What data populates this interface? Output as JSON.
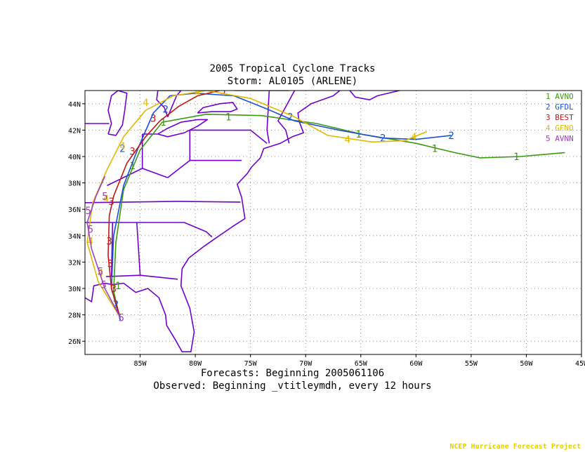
{
  "header": {
    "title_line1": "2005 Tropical Cyclone Tracks",
    "title_line2": "Storm: AL0105 (ARLENE)"
  },
  "footer": {
    "forecast_line": "Forecasts: Beginning 2005061106",
    "observed_line": "Observed: Beginning _vtitleymdh, every 12 hours",
    "credit": "NCEP Hurricane Forecast Project"
  },
  "map": {
    "lon_range": [
      -90,
      -45
    ],
    "lat_range": [
      25,
      45
    ],
    "lon_ticks": [
      "85W",
      "80W",
      "75W",
      "70W",
      "65W",
      "60W",
      "55W",
      "50W",
      "45W"
    ],
    "lat_ticks": [
      "26N",
      "28N",
      "30N",
      "32N",
      "34N",
      "36N",
      "38N",
      "40N",
      "42N",
      "44N"
    ],
    "grid": true,
    "boundary_color": "#7000d0"
  },
  "legend": {
    "placement": "top-right",
    "items": [
      {
        "num": "1",
        "name": "AVNO",
        "color": "#3a9a10"
      },
      {
        "num": "2",
        "name": "GFDL",
        "color": "#1850d8"
      },
      {
        "num": "3",
        "name": "BEST",
        "color": "#c01818"
      },
      {
        "num": "4",
        "name": "GFNO",
        "color": "#e0b800"
      },
      {
        "num": "5",
        "name": "AVNN",
        "color": "#a040c0"
      }
    ]
  },
  "tracks": [
    {
      "id": "1",
      "name": "AVNO",
      "color": "#3a9a10",
      "points": [
        [
          -86.8,
          27.6
        ],
        [
          -87.4,
          29.8
        ],
        [
          -87.2,
          33.5
        ],
        [
          -86.5,
          37.5
        ],
        [
          -85.0,
          40.5
        ],
        [
          -83.0,
          42.6
        ],
        [
          -79.0,
          43.2
        ],
        [
          -74.0,
          43.1
        ],
        [
          -69.0,
          42.5
        ],
        [
          -65.0,
          41.7
        ],
        [
          -60.0,
          41.0
        ],
        [
          -56.5,
          40.3
        ],
        [
          -54.2,
          39.9
        ],
        [
          -50.5,
          40.0
        ],
        [
          -46.5,
          40.3
        ]
      ],
      "labels": [
        [
          -87.0,
          30.2
        ],
        [
          -85.7,
          39.3
        ],
        [
          -82.9,
          42.6
        ],
        [
          -77.0,
          43.0
        ],
        [
          -65.2,
          41.7
        ],
        [
          -58.3,
          40.6
        ],
        [
          -50.9,
          40.0
        ]
      ]
    },
    {
      "id": "2",
      "name": "GFDL",
      "color": "#1850d8",
      "points": [
        [
          -86.8,
          27.6
        ],
        [
          -87.6,
          30.0
        ],
        [
          -87.4,
          34.0
        ],
        [
          -86.5,
          37.8
        ],
        [
          -85.2,
          40.6
        ],
        [
          -83.8,
          43.3
        ],
        [
          -82.3,
          44.6
        ],
        [
          -80.0,
          44.8
        ],
        [
          -76.5,
          44.6
        ],
        [
          -73.5,
          43.6
        ],
        [
          -71.0,
          42.7
        ],
        [
          -67.0,
          42.0
        ],
        [
          -63.0,
          41.4
        ],
        [
          -60.0,
          41.3
        ],
        [
          -56.8,
          41.6
        ]
      ],
      "labels": [
        [
          -87.2,
          28.8
        ],
        [
          -86.6,
          40.6
        ],
        [
          -82.7,
          43.6
        ],
        [
          -71.4,
          43.0
        ],
        [
          -63.0,
          41.4
        ],
        [
          -56.8,
          41.6
        ]
      ]
    },
    {
      "id": "3",
      "name": "BEST",
      "color": "#c01818",
      "points": [
        [
          -86.8,
          27.8
        ],
        [
          -87.6,
          30.0
        ],
        [
          -87.9,
          32.5
        ],
        [
          -87.8,
          35.5
        ],
        [
          -87.4,
          37.0
        ],
        [
          -86.2,
          39.5
        ],
        [
          -84.5,
          41.5
        ],
        [
          -83.2,
          42.7
        ],
        [
          -81.5,
          43.8
        ],
        [
          -79.8,
          44.6
        ],
        [
          -77.8,
          45.0
        ]
      ],
      "labels": [
        [
          -87.4,
          30.0
        ],
        [
          -87.7,
          31.9
        ],
        [
          -87.8,
          33.6
        ],
        [
          -87.6,
          36.6
        ],
        [
          -85.7,
          40.4
        ],
        [
          -83.8,
          42.9
        ],
        [
          -77.5,
          45.0
        ]
      ]
    },
    {
      "id": "4",
      "name": "GFNO",
      "color": "#e0b800",
      "points": [
        [
          -86.8,
          27.8
        ],
        [
          -88.8,
          30.5
        ],
        [
          -89.8,
          33.5
        ],
        [
          -89.3,
          36.5
        ],
        [
          -88.0,
          39.0
        ],
        [
          -86.5,
          41.5
        ],
        [
          -84.5,
          43.5
        ],
        [
          -82.0,
          44.6
        ],
        [
          -79.0,
          45.0
        ],
        [
          -75.0,
          44.4
        ],
        [
          -71.0,
          43.0
        ],
        [
          -68.0,
          41.6
        ],
        [
          -64.0,
          41.1
        ],
        [
          -61.0,
          41.2
        ],
        [
          -59.0,
          41.9
        ]
      ],
      "labels": [
        [
          -88.6,
          31.2
        ],
        [
          -89.5,
          33.6
        ],
        [
          -88.1,
          36.8
        ],
        [
          -86.6,
          40.8
        ],
        [
          -84.5,
          44.1
        ],
        [
          -79.8,
          44.9
        ],
        [
          -66.2,
          41.3
        ],
        [
          -60.2,
          41.5
        ]
      ]
    },
    {
      "id": "5",
      "name": "AVNN",
      "color": "#a040c0",
      "points": [
        [
          -86.8,
          27.8
        ],
        [
          -88.2,
          30.0
        ],
        [
          -89.4,
          33.0
        ],
        [
          -89.8,
          35.0
        ],
        [
          -89.0,
          37.0
        ],
        [
          -88.2,
          38.5
        ]
      ],
      "labels": [
        [
          -86.7,
          27.8
        ],
        [
          -88.3,
          30.3
        ],
        [
          -88.6,
          31.3
        ],
        [
          -89.5,
          34.5
        ],
        [
          -89.7,
          35.9
        ],
        [
          -88.2,
          37.0
        ]
      ]
    }
  ]
}
